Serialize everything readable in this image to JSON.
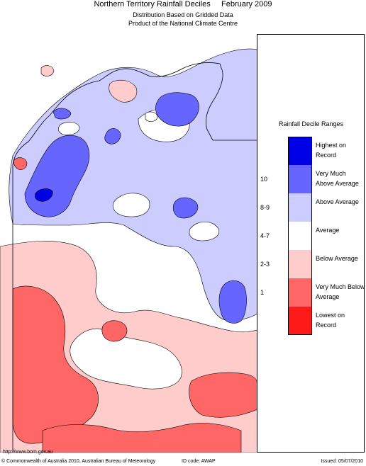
{
  "header": {
    "title": "Northern Territory Rainfall Deciles     February 2009",
    "subtitle_1": "Distribution Based on Gridded Data",
    "subtitle_2": "Product of the National Climate Centre"
  },
  "legend": {
    "title": "Rainfall Decile Ranges",
    "items": [
      {
        "range": "",
        "label": "Highest on Record",
        "color": "#0000e6"
      },
      {
        "range": "10",
        "label": "Very Much Above Average",
        "color": "#6666ff"
      },
      {
        "range": "8-9",
        "label": "Above Average",
        "color": "#ccccff"
      },
      {
        "range": "4-7",
        "label": "Average",
        "color": "#ffffff"
      },
      {
        "range": "2-3",
        "label": "Below Average",
        "color": "#ffcccc"
      },
      {
        "range": "1",
        "label": "Very Much Below Average",
        "color": "#ff6666"
      },
      {
        "range": "",
        "label": "Lowest on Record",
        "color": "#ff1a1a"
      }
    ]
  },
  "footer": {
    "url": "http://www.bom.gov.au",
    "copyright": "© Commonwealth of Australia 2010, Australian Bureau of Meteorology",
    "id_code": "ID code: AWAP",
    "issued": "Issued: 05/07/2010"
  }
}
